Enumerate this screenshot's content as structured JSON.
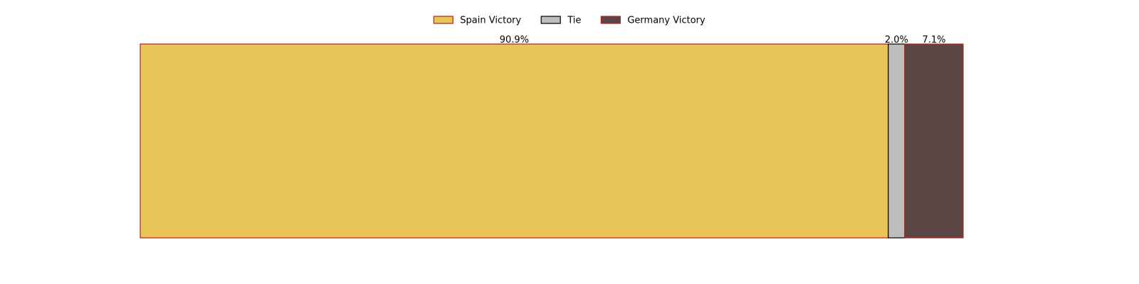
{
  "chart_data": {
    "type": "bar",
    "orientation": "horizontal-stacked",
    "series": [
      {
        "name": "Spain Victory",
        "value": 90.9,
        "label": "90.9%",
        "color": "#E8C457",
        "edge": "#B22222"
      },
      {
        "name": "Tie",
        "value": 2.0,
        "label": "2.0%",
        "color": "#BDBDBD",
        "edge": "#000000"
      },
      {
        "name": "Germany Victory",
        "value": 7.1,
        "label": "7.1%",
        "color": "#5A4644",
        "edge": "#B22222"
      }
    ],
    "xlim": [
      0,
      100
    ],
    "axes_visible": false,
    "grid": false,
    "legend_position": "top-center"
  }
}
